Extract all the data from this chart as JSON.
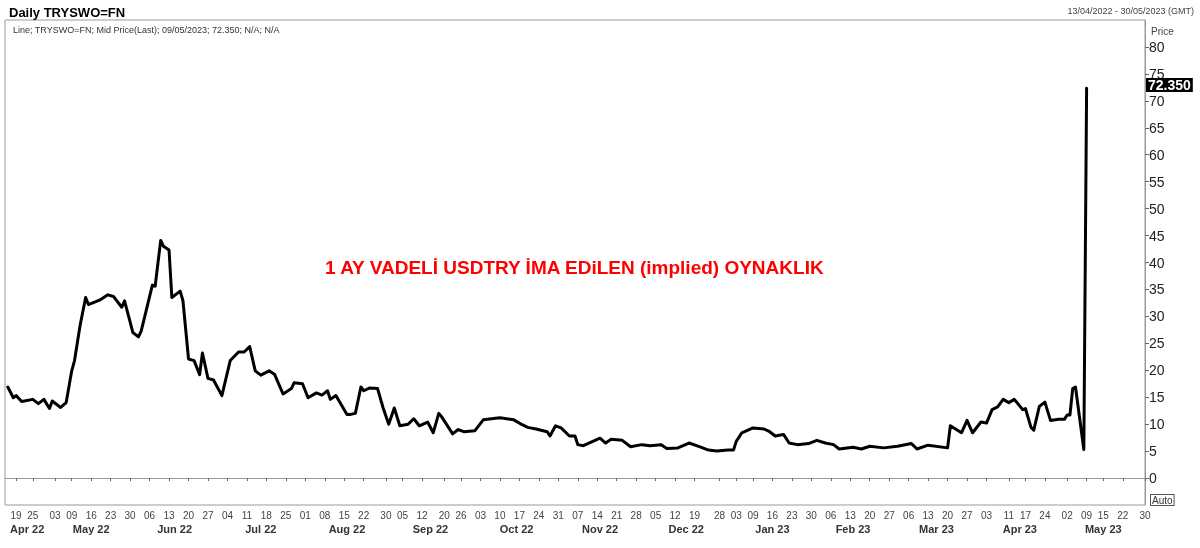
{
  "chart_data": {
    "type": "line",
    "title": "Daily TRYSWO=FN",
    "subtitle": "Line; TRYSWO=FN; Mid Price(Last); 09/05/2023; 72.350; N/A; N/A",
    "ylabel": "Price",
    "annotations": [
      "1 AY VADELİ USDTRY İMA EDiLEN (implied) OYNAKLIK",
      "13/04/2022 - 30/05/2023 (GMT)",
      "Auto",
      "72.350"
    ],
    "x": [
      "2022-04-16",
      "2022-04-18",
      "2022-04-19",
      "2022-04-21",
      "2022-04-25",
      "2022-04-27",
      "2022-04-29",
      "2022-05-01",
      "2022-05-02",
      "2022-05-05",
      "2022-05-07",
      "2022-05-09",
      "2022-05-10",
      "2022-05-12",
      "2022-05-14",
      "2022-05-15",
      "2022-05-19",
      "2022-05-22",
      "2022-05-24",
      "2022-05-27",
      "2022-05-28",
      "2022-05-31",
      "2022-06-02",
      "2022-06-03",
      "2022-06-07",
      "2022-06-08",
      "2022-06-10",
      "2022-06-11",
      "2022-06-13",
      "2022-06-14",
      "2022-06-17",
      "2022-06-18",
      "2022-06-20",
      "2022-06-22",
      "2022-06-24",
      "2022-06-25",
      "2022-06-27",
      "2022-06-29",
      "2022-07-02",
      "2022-07-05",
      "2022-07-08",
      "2022-07-10",
      "2022-07-12",
      "2022-07-14",
      "2022-07-16",
      "2022-07-19",
      "2022-07-21",
      "2022-07-24",
      "2022-07-27",
      "2022-07-28",
      "2022-07-31",
      "2022-08-02",
      "2022-08-05",
      "2022-08-07",
      "2022-08-09",
      "2022-08-10",
      "2022-08-12",
      "2022-08-16",
      "2022-08-17",
      "2022-08-19",
      "2022-08-21",
      "2022-08-22",
      "2022-08-24",
      "2022-08-27",
      "2022-08-29",
      "2022-08-31",
      "2022-09-02",
      "2022-09-04",
      "2022-09-07",
      "2022-09-09",
      "2022-09-11",
      "2022-09-14",
      "2022-09-16",
      "2022-09-18",
      "2022-09-19",
      "2022-09-23",
      "2022-09-25",
      "2022-09-27",
      "2022-10-01",
      "2022-10-04",
      "2022-10-10",
      "2022-10-15",
      "2022-10-18",
      "2022-10-20",
      "2022-10-23",
      "2022-10-27",
      "2022-10-28",
      "2022-10-30",
      "2022-11-01",
      "2022-11-04",
      "2022-11-06",
      "2022-11-07",
      "2022-11-09",
      "2022-11-12",
      "2022-11-15",
      "2022-11-17",
      "2022-11-19",
      "2022-11-23",
      "2022-11-26",
      "2022-11-30",
      "2022-12-03",
      "2022-12-07",
      "2022-12-09",
      "2022-12-13",
      "2022-12-17",
      "2022-12-21",
      "2022-12-24",
      "2022-12-27",
      "2022-12-31",
      "2023-01-02",
      "2023-01-03",
      "2023-01-05",
      "2023-01-09",
      "2023-01-13",
      "2023-01-15",
      "2023-01-17",
      "2023-01-20",
      "2023-01-22",
      "2023-01-25",
      "2023-01-29",
      "2023-02-01",
      "2023-02-04",
      "2023-02-07",
      "2023-02-09",
      "2023-02-14",
      "2023-02-17",
      "2023-02-20",
      "2023-02-25",
      "2023-03-02",
      "2023-03-07",
      "2023-03-09",
      "2023-03-13",
      "2023-03-20",
      "2023-03-21",
      "2023-03-25",
      "2023-03-27",
      "2023-03-29",
      "2023-04-01",
      "2023-04-03",
      "2023-04-05",
      "2023-04-07",
      "2023-04-09",
      "2023-04-11",
      "2023-04-13",
      "2023-04-16",
      "2023-04-17",
      "2023-04-19",
      "2023-04-20",
      "2023-04-22",
      "2023-04-24",
      "2023-04-26",
      "2023-04-29",
      "2023-05-01",
      "2023-05-02",
      "2023-05-03",
      "2023-05-04",
      "2023-05-05",
      "2023-05-08",
      "2023-05-09"
    ],
    "series": [
      {
        "color": "#000000",
        "values": [
          16.9,
          14.9,
          15.3,
          14.2,
          14.6,
          13.8,
          14.6,
          12.9,
          14.3,
          13.1,
          14.0,
          19.9,
          21.8,
          28.3,
          33.5,
          32.2,
          33.0,
          34.0,
          33.7,
          31.7,
          32.9,
          27.0,
          26.2,
          27.3,
          35.8,
          35.6,
          44.1,
          43.0,
          42.3,
          33.5,
          34.7,
          32.9,
          22.1,
          21.8,
          19.2,
          23.2,
          18.5,
          18.2,
          15.3,
          21.8,
          23.4,
          23.4,
          24.4,
          19.9,
          19.1,
          19.9,
          19.2,
          15.6,
          16.6,
          17.7,
          17.5,
          14.9,
          15.8,
          15.4,
          16.2,
          14.6,
          15.3,
          11.8,
          11.8,
          12.0,
          16.9,
          16.2,
          16.7,
          16.6,
          13.0,
          10.0,
          13.0,
          9.7,
          10.0,
          11.0,
          9.7,
          10.4,
          8.4,
          12.0,
          11.4,
          8.2,
          9.0,
          8.6,
          8.8,
          10.8,
          11.2,
          10.8,
          9.9,
          9.4,
          9.1,
          8.6,
          7.8,
          9.7,
          9.3,
          7.8,
          7.8,
          6.2,
          6.0,
          6.7,
          7.4,
          6.5,
          7.2,
          7.0,
          5.8,
          6.2,
          6.0,
          6.2,
          5.5,
          5.6,
          6.5,
          5.8,
          5.2,
          5.0,
          5.2,
          5.2,
          6.8,
          8.4,
          9.3,
          9.1,
          8.6,
          7.8,
          8.1,
          6.5,
          6.2,
          6.4,
          7.0,
          6.5,
          6.2,
          5.4,
          5.7,
          5.4,
          5.9,
          5.6,
          5.9,
          6.4,
          5.4,
          6.1,
          5.6,
          9.7,
          8.4,
          10.7,
          8.4,
          10.4,
          10.2,
          12.7,
          13.2,
          14.6,
          14.0,
          14.6,
          12.7,
          12.9,
          9.4,
          8.9,
          13.3,
          14.1,
          10.7,
          10.9,
          10.9,
          11.7,
          11.7,
          16.6,
          16.9,
          5.3,
          72.35
        ]
      }
    ],
    "line_style": "solid",
    "xlim": [
      "2022-04-15",
      "2023-05-30"
    ],
    "xticks": [
      {
        "value": "2022-04-19",
        "label": "19"
      },
      {
        "value": "2022-04-25",
        "label": "25"
      },
      {
        "value": "2022-05-03",
        "label": "03"
      },
      {
        "value": "2022-05-09",
        "label": "09"
      },
      {
        "value": "2022-05-16",
        "label": "16"
      },
      {
        "value": "2022-05-23",
        "label": "23"
      },
      {
        "value": "2022-05-30",
        "label": "30"
      },
      {
        "value": "2022-06-06",
        "label": "06"
      },
      {
        "value": "2022-06-13",
        "label": "13"
      },
      {
        "value": "2022-06-20",
        "label": "20"
      },
      {
        "value": "2022-06-27",
        "label": "27"
      },
      {
        "value": "2022-07-04",
        "label": "04"
      },
      {
        "value": "2022-07-11",
        "label": "11"
      },
      {
        "value": "2022-07-18",
        "label": "18"
      },
      {
        "value": "2022-07-25",
        "label": "25"
      },
      {
        "value": "2022-08-01",
        "label": "01"
      },
      {
        "value": "2022-08-08",
        "label": "08"
      },
      {
        "value": "2022-08-15",
        "label": "15"
      },
      {
        "value": "2022-08-22",
        "label": "22"
      },
      {
        "value": "2022-08-30",
        "label": "30"
      },
      {
        "value": "2022-09-05",
        "label": "05"
      },
      {
        "value": "2022-09-12",
        "label": "12"
      },
      {
        "value": "2022-09-20",
        "label": "20"
      },
      {
        "value": "2022-09-26",
        "label": "26"
      },
      {
        "value": "2022-10-03",
        "label": "03"
      },
      {
        "value": "2022-10-10",
        "label": "10"
      },
      {
        "value": "2022-10-17",
        "label": "17"
      },
      {
        "value": "2022-10-24",
        "label": "24"
      },
      {
        "value": "2022-10-31",
        "label": "31"
      },
      {
        "value": "2022-11-07",
        "label": "07"
      },
      {
        "value": "2022-11-14",
        "label": "14"
      },
      {
        "value": "2022-11-21",
        "label": "21"
      },
      {
        "value": "2022-11-28",
        "label": "28"
      },
      {
        "value": "2022-12-05",
        "label": "05"
      },
      {
        "value": "2022-12-12",
        "label": "12"
      },
      {
        "value": "2022-12-19",
        "label": "19"
      },
      {
        "value": "2022-12-28",
        "label": "28"
      },
      {
        "value": "2023-01-03",
        "label": "03"
      },
      {
        "value": "2023-01-09",
        "label": "09"
      },
      {
        "value": "2023-01-16",
        "label": "16"
      },
      {
        "value": "2023-01-23",
        "label": "23"
      },
      {
        "value": "2023-01-30",
        "label": "30"
      },
      {
        "value": "2023-02-06",
        "label": "06"
      },
      {
        "value": "2023-02-13",
        "label": "13"
      },
      {
        "value": "2023-02-20",
        "label": "20"
      },
      {
        "value": "2023-02-27",
        "label": "27"
      },
      {
        "value": "2023-03-06",
        "label": "06"
      },
      {
        "value": "2023-03-13",
        "label": "13"
      },
      {
        "value": "2023-03-20",
        "label": "20"
      },
      {
        "value": "2023-03-27",
        "label": "27"
      },
      {
        "value": "2023-04-03",
        "label": "03"
      },
      {
        "value": "2023-04-11",
        "label": "11"
      },
      {
        "value": "2023-04-17",
        "label": "17"
      },
      {
        "value": "2023-04-24",
        "label": "24"
      },
      {
        "value": "2023-05-02",
        "label": "02"
      },
      {
        "value": "2023-05-09",
        "label": "09"
      },
      {
        "value": "2023-05-15",
        "label": "15"
      },
      {
        "value": "2023-05-22",
        "label": "22"
      },
      {
        "value": "2023-05-30",
        "label": "30"
      }
    ],
    "x2lim": [
      "2022-04-15",
      "2023-05-30"
    ],
    "x2ticks": [
      {
        "value": "2022-04-23",
        "label": "Apr 22"
      },
      {
        "value": "2022-05-16",
        "label": "May 22"
      },
      {
        "value": "2022-06-15",
        "label": "Jun 22"
      },
      {
        "value": "2022-07-16",
        "label": "Jul 22"
      },
      {
        "value": "2022-08-16",
        "label": "Aug 22"
      },
      {
        "value": "2022-09-15",
        "label": "Sep 22"
      },
      {
        "value": "2022-10-16",
        "label": "Oct 22"
      },
      {
        "value": "2022-11-15",
        "label": "Nov 22"
      },
      {
        "value": "2022-12-16",
        "label": "Dec 22"
      },
      {
        "value": "2023-01-16",
        "label": "Jan 23"
      },
      {
        "value": "2023-02-14",
        "label": "Feb 23"
      },
      {
        "value": "2023-03-16",
        "label": "Mar 23"
      },
      {
        "value": "2023-04-15",
        "label": "Apr 23"
      },
      {
        "value": "2023-05-15",
        "label": "May 23"
      }
    ],
    "ylim": [
      -5,
      85
    ],
    "yticks": [
      0,
      5,
      10,
      15,
      20,
      25,
      30,
      35,
      40,
      45,
      50,
      55,
      60,
      65,
      70,
      75,
      80
    ]
  }
}
